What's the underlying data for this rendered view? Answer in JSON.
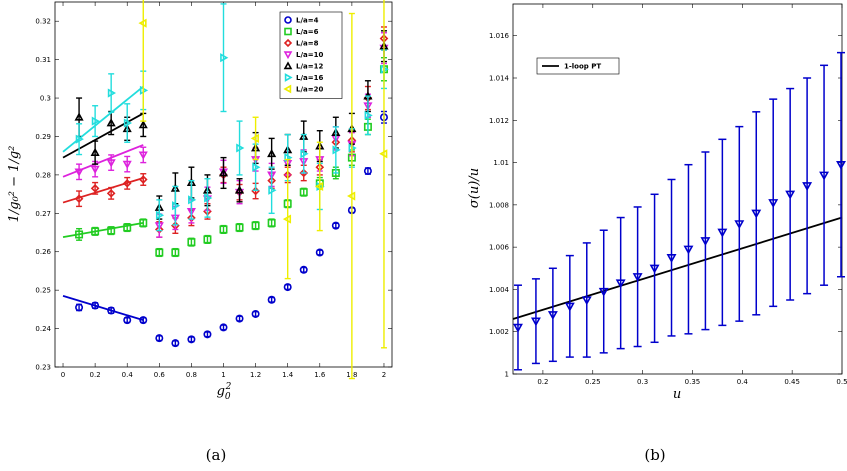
{
  "captions": {
    "a": "(a)",
    "b": "(b)"
  },
  "chart_data": [
    {
      "type": "scatter",
      "panel": "a",
      "xlabel": "g_0^2",
      "ylabel": "1/g_0^2 - 1/g^2",
      "xlim": [
        -0.05,
        2.05
      ],
      "ylim": [
        0.23,
        0.325
      ],
      "xticks": [
        0,
        0.2,
        0.4,
        0.6,
        0.8,
        1,
        1.2,
        1.4,
        1.6,
        1.8,
        2
      ],
      "xtick_labels": [
        "0",
        "0.2",
        "0.4",
        "0.6",
        "0.8",
        "1",
        "1.2",
        "1.4",
        "1.6",
        "1.8",
        "2"
      ],
      "yticks": [
        0.23,
        0.24,
        0.25,
        0.26,
        0.27,
        0.28,
        0.29,
        0.3,
        0.31,
        0.32
      ],
      "ytick_labels": [
        "0.23",
        "0.24",
        "0.25",
        "0.26",
        "0.27",
        "0.28",
        "0.29",
        "0.3",
        "0.31",
        "0.32"
      ],
      "legend_position": "top-right",
      "series": [
        {
          "name": "L/a=4",
          "color": "#0000cc",
          "marker": "circle",
          "x": [
            0.1,
            0.2,
            0.3,
            0.4,
            0.5,
            0.6,
            0.7,
            0.8,
            0.9,
            1.0,
            1.1,
            1.2,
            1.3,
            1.4,
            1.5,
            1.6,
            1.7,
            1.8,
            1.9,
            2.0
          ],
          "y": [
            0.2455,
            0.246,
            0.2447,
            0.2422,
            0.2422,
            0.2375,
            0.2362,
            0.2372,
            0.2385,
            0.2403,
            0.2426,
            0.2438,
            0.2475,
            0.2508,
            0.2553,
            0.2598,
            0.2668,
            0.2708,
            0.281,
            0.295
          ],
          "err": [
            0.0008,
            0.0007,
            0.0007,
            0.0006,
            0.0006,
            0.0006,
            0.0006,
            0.0006,
            0.0006,
            0.0006,
            0.0006,
            0.0006,
            0.0006,
            0.0006,
            0.0006,
            0.0006,
            0.0006,
            0.0006,
            0.0008,
            0.0015
          ],
          "fit": {
            "x": [
              0,
              0.5
            ],
            "y": [
              0.2485,
              0.2422
            ]
          }
        },
        {
          "name": "L/a=6",
          "color": "#22cc22",
          "marker": "square",
          "x": [
            0.1,
            0.2,
            0.3,
            0.4,
            0.5,
            0.6,
            0.7,
            0.8,
            0.9,
            1.0,
            1.1,
            1.2,
            1.3,
            1.4,
            1.5,
            1.6,
            1.7,
            1.8,
            1.9,
            2.0
          ],
          "y": [
            0.2645,
            0.2653,
            0.2655,
            0.2663,
            0.2675,
            0.2598,
            0.2598,
            0.2625,
            0.2632,
            0.2658,
            0.2663,
            0.2668,
            0.2675,
            0.2725,
            0.2755,
            0.2778,
            0.2805,
            0.2845,
            0.2925,
            0.3075
          ],
          "err": [
            0.0015,
            0.001,
            0.001,
            0.001,
            0.001,
            0.001,
            0.001,
            0.001,
            0.001,
            0.001,
            0.001,
            0.001,
            0.001,
            0.001,
            0.001,
            0.0015,
            0.0015,
            0.002,
            0.002,
            0.003
          ],
          "fit": {
            "x": [
              0,
              0.5
            ],
            "y": [
              0.2638,
              0.2675
            ]
          }
        },
        {
          "name": "L/a=8",
          "color": "#dd2222",
          "marker": "diamond",
          "x": [
            0.1,
            0.2,
            0.3,
            0.4,
            0.5,
            0.6,
            0.7,
            0.8,
            0.9,
            1.0,
            1.1,
            1.2,
            1.3,
            1.4,
            1.5,
            1.6,
            1.7,
            1.8,
            1.9,
            2.0
          ],
          "y": [
            0.2738,
            0.2765,
            0.2752,
            0.2778,
            0.2788,
            0.2658,
            0.2668,
            0.2688,
            0.2705,
            0.28,
            0.2755,
            0.2758,
            0.2785,
            0.28,
            0.2805,
            0.282,
            0.2885,
            0.289,
            0.3,
            0.3155
          ],
          "err": [
            0.002,
            0.0015,
            0.0015,
            0.0015,
            0.0015,
            0.002,
            0.002,
            0.002,
            0.002,
            0.002,
            0.002,
            0.002,
            0.002,
            0.002,
            0.002,
            0.002,
            0.002,
            0.003,
            0.003,
            0.003
          ],
          "fit": {
            "x": [
              0,
              0.5
            ],
            "y": [
              0.2728,
              0.2792
            ]
          }
        },
        {
          "name": "L/a=10",
          "color": "#dd22dd",
          "marker": "triangle-down",
          "x": [
            0.1,
            0.2,
            0.3,
            0.4,
            0.5,
            0.6,
            0.7,
            0.8,
            0.9,
            1.0,
            1.1,
            1.2,
            1.3,
            1.4,
            1.5,
            1.6,
            1.7,
            1.8,
            1.9,
            2.0
          ],
          "y": [
            0.2808,
            0.2815,
            0.2832,
            0.2828,
            0.2852,
            0.2668,
            0.2688,
            0.2705,
            0.2738,
            0.2808,
            0.2755,
            0.284,
            0.28,
            0.283,
            0.2835,
            0.284,
            0.2895,
            0.288,
            0.298,
            0.313
          ],
          "err": [
            0.002,
            0.002,
            0.002,
            0.002,
            0.002,
            0.003,
            0.003,
            0.003,
            0.003,
            0.003,
            0.003,
            0.003,
            0.003,
            0.003,
            0.003,
            0.003,
            0.003,
            0.003,
            0.003,
            0.004
          ],
          "fit": {
            "x": [
              0,
              0.5
            ],
            "y": [
              0.2795,
              0.2878
            ]
          }
        },
        {
          "name": "L/a=12",
          "color": "#000000",
          "marker": "triangle-up",
          "x": [
            0.1,
            0.2,
            0.3,
            0.4,
            0.5,
            0.6,
            0.7,
            0.8,
            0.9,
            1.0,
            1.1,
            1.2,
            1.3,
            1.4,
            1.5,
            1.6,
            1.7,
            1.8,
            1.9,
            2.0
          ],
          "y": [
            0.295,
            0.2858,
            0.2935,
            0.292,
            0.293,
            0.2715,
            0.2765,
            0.278,
            0.276,
            0.2805,
            0.276,
            0.287,
            0.2855,
            0.2865,
            0.29,
            0.2875,
            0.291,
            0.292,
            0.3005,
            0.3135
          ],
          "err": [
            0.005,
            0.003,
            0.003,
            0.003,
            0.003,
            0.003,
            0.004,
            0.004,
            0.004,
            0.004,
            0.003,
            0.004,
            0.004,
            0.004,
            0.004,
            0.004,
            0.004,
            0.004,
            0.004,
            0.004
          ],
          "fit": {
            "x": [
              0,
              0.5
            ],
            "y": [
              0.2845,
              0.296
            ]
          }
        },
        {
          "name": "L/a=16",
          "color": "#22dddd",
          "marker": "triangle-right",
          "x": [
            0.1,
            0.2,
            0.3,
            0.4,
            0.5,
            0.6,
            0.7,
            0.8,
            0.9,
            1.0,
            1.1,
            1.2,
            1.3,
            1.4,
            1.5,
            1.6,
            1.7,
            1.8,
            1.9,
            2.0
          ],
          "y": [
            0.2893,
            0.294,
            0.3013,
            0.2935,
            0.302,
            0.2695,
            0.272,
            0.2735,
            0.274,
            0.3105,
            0.287,
            0.282,
            0.276,
            0.2845,
            0.2855,
            0.277,
            0.2865,
            0.287,
            0.2955,
            0.3075
          ],
          "err": [
            0.004,
            0.004,
            0.005,
            0.005,
            0.005,
            0.004,
            0.005,
            0.005,
            0.005,
            0.014,
            0.007,
            0.006,
            0.006,
            0.006,
            0.005,
            0.006,
            0.006,
            0.005,
            0.005,
            0.005
          ],
          "fit": {
            "x": [
              0,
              0.5
            ],
            "y": [
              0.286,
              0.303
            ]
          }
        },
        {
          "name": "L/a=20",
          "color": "#eeee00",
          "marker": "triangle-left",
          "x": [
            0.5,
            1.2,
            1.4,
            1.6,
            1.8,
            2.0
          ],
          "y": [
            0.3195,
            0.2895,
            0.2685,
            0.277,
            0.2745,
            0.2855
          ],
          "err": [
            0.0255,
            0.0055,
            0.0155,
            0.0115,
            0.0475,
            0.0505
          ],
          "fit": null
        }
      ]
    },
    {
      "type": "scatter",
      "panel": "b",
      "xlabel": "u",
      "ylabel": "σ(u)/u",
      "xlim": [
        0.17,
        0.5
      ],
      "ylim": [
        1.0,
        1.0175
      ],
      "xticks": [
        0.2,
        0.25,
        0.3,
        0.35,
        0.4,
        0.45,
        0.5
      ],
      "xtick_labels": [
        "0.2",
        "0.25",
        "0.3",
        "0.35",
        "0.4",
        "0.45",
        "0.5"
      ],
      "yticks": [
        1.0,
        1.002,
        1.004,
        1.006,
        1.008,
        1.01,
        1.012,
        1.014,
        1.016
      ],
      "ytick_labels": [
        "1",
        "1.002",
        "1.004",
        "1.006",
        "1.008",
        "1.01",
        "1.012",
        "1.014",
        "1.016"
      ],
      "legend_position": "top-left",
      "legend": [
        "1-loop PT"
      ],
      "line": {
        "name": "1-loop PT",
        "color": "#000000",
        "x": [
          0.17,
          0.5
        ],
        "y": [
          1.0026,
          1.0074
        ]
      },
      "series": [
        {
          "name": "",
          "color": "#0000cc",
          "marker": "triangle-down",
          "x": [
            0.175,
            0.193,
            0.21,
            0.227,
            0.244,
            0.261,
            0.278,
            0.295,
            0.312,
            0.329,
            0.346,
            0.363,
            0.38,
            0.397,
            0.414,
            0.431,
            0.448,
            0.465,
            0.482,
            0.499
          ],
          "y": [
            1.0022,
            1.0025,
            1.0028,
            1.0032,
            1.0035,
            1.0039,
            1.0043,
            1.0046,
            1.005,
            1.0055,
            1.0059,
            1.0063,
            1.0067,
            1.0071,
            1.0076,
            1.0081,
            1.0085,
            1.0089,
            1.0094,
            1.0099
          ],
          "err": [
            0.002,
            0.002,
            0.0022,
            0.0024,
            0.0027,
            0.0029,
            0.0031,
            0.0033,
            0.0035,
            0.0037,
            0.004,
            0.0042,
            0.0044,
            0.0046,
            0.0048,
            0.0049,
            0.005,
            0.0051,
            0.0052,
            0.0053
          ]
        }
      ]
    }
  ]
}
